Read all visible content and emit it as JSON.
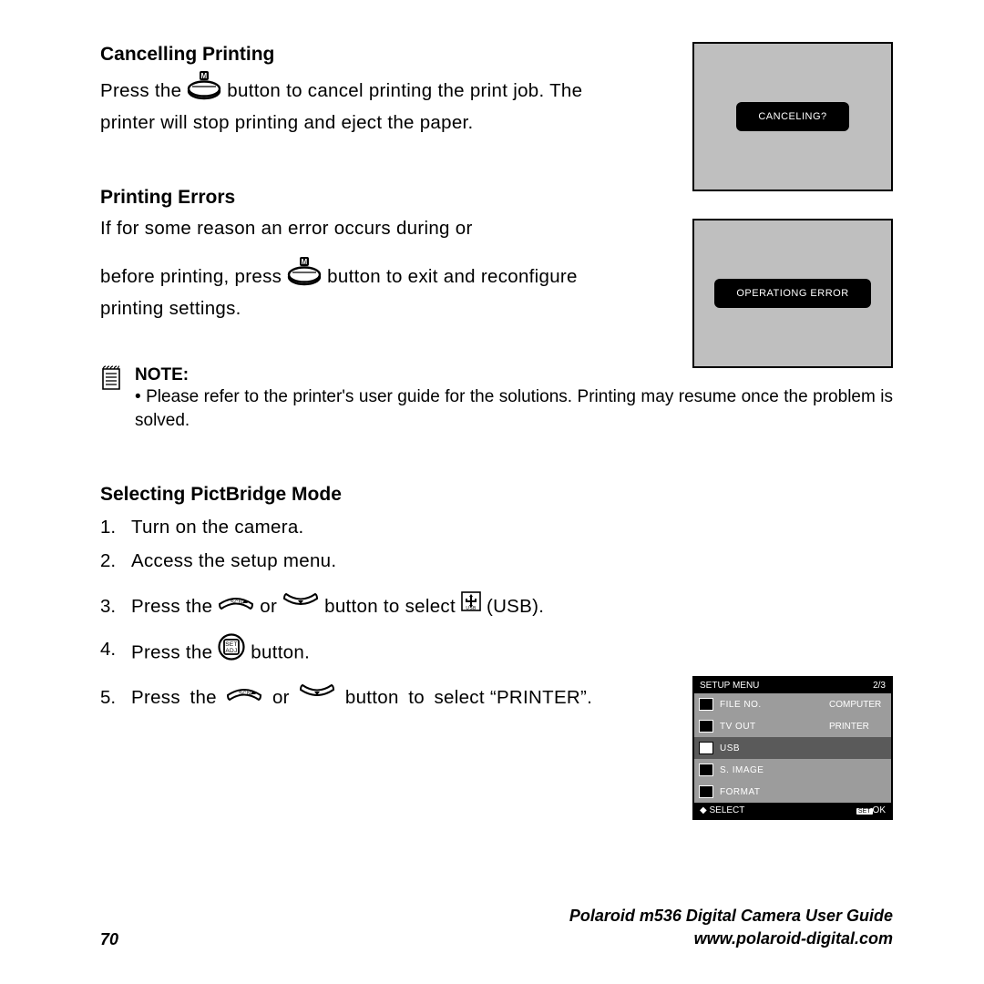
{
  "cancelling": {
    "title": "Cancelling Printing",
    "text_before": "Press the ",
    "text_after": " button to cancel printing the print job. The printer will stop printing and eject the paper.",
    "lcd_label": "CANCELING?"
  },
  "errors": {
    "title": "Printing Errors",
    "line1": "If for some reason an error occurs during or",
    "line2_before": "before printing, press ",
    "line2_after": " button to exit and reconfigure printing settings.",
    "lcd_label": "OPERATIONG ERROR"
  },
  "note": {
    "label": "NOTE:",
    "bullet": "• Please refer to the printer's user guide for the solutions. Printing may resume once the problem is solved."
  },
  "pictbridge": {
    "title": "Selecting PictBridge Mode",
    "step1": "Turn on the camera.",
    "step2": "Access the setup menu.",
    "step3_a": "Press the ",
    "step3_or": " or ",
    "step3_b": " button to select ",
    "step3_c": " (USB).",
    "step4_a": "Press the ",
    "step4_b": " button.",
    "step5_a": "Press the ",
    "step5_or": " or ",
    "step5_b": " button to select “PRINTER”."
  },
  "setup_menu": {
    "title": "SETUP MENU",
    "page": "2/3",
    "rows": [
      {
        "label": "FILE NO.",
        "value": "COMPUTER",
        "selected": false
      },
      {
        "label": "TV OUT",
        "value": "PRINTER",
        "selected": false
      },
      {
        "label": "USB",
        "value": "",
        "selected": true
      },
      {
        "label": "S. IMAGE",
        "value": "",
        "selected": false
      },
      {
        "label": "FORMAT",
        "value": "",
        "selected": false
      }
    ],
    "footer_left": "SELECT",
    "footer_right": "OK",
    "footer_right_badge": "SET"
  },
  "footer": {
    "page": "70",
    "title": "Polaroid m536 Digital Camera User Guide",
    "url": "www.polaroid-digital.com"
  },
  "colors": {
    "lcd_bg": "#bfbfbf",
    "menu_bg": "#9c9c9c",
    "menu_sel_bg": "#5a5a5a"
  }
}
